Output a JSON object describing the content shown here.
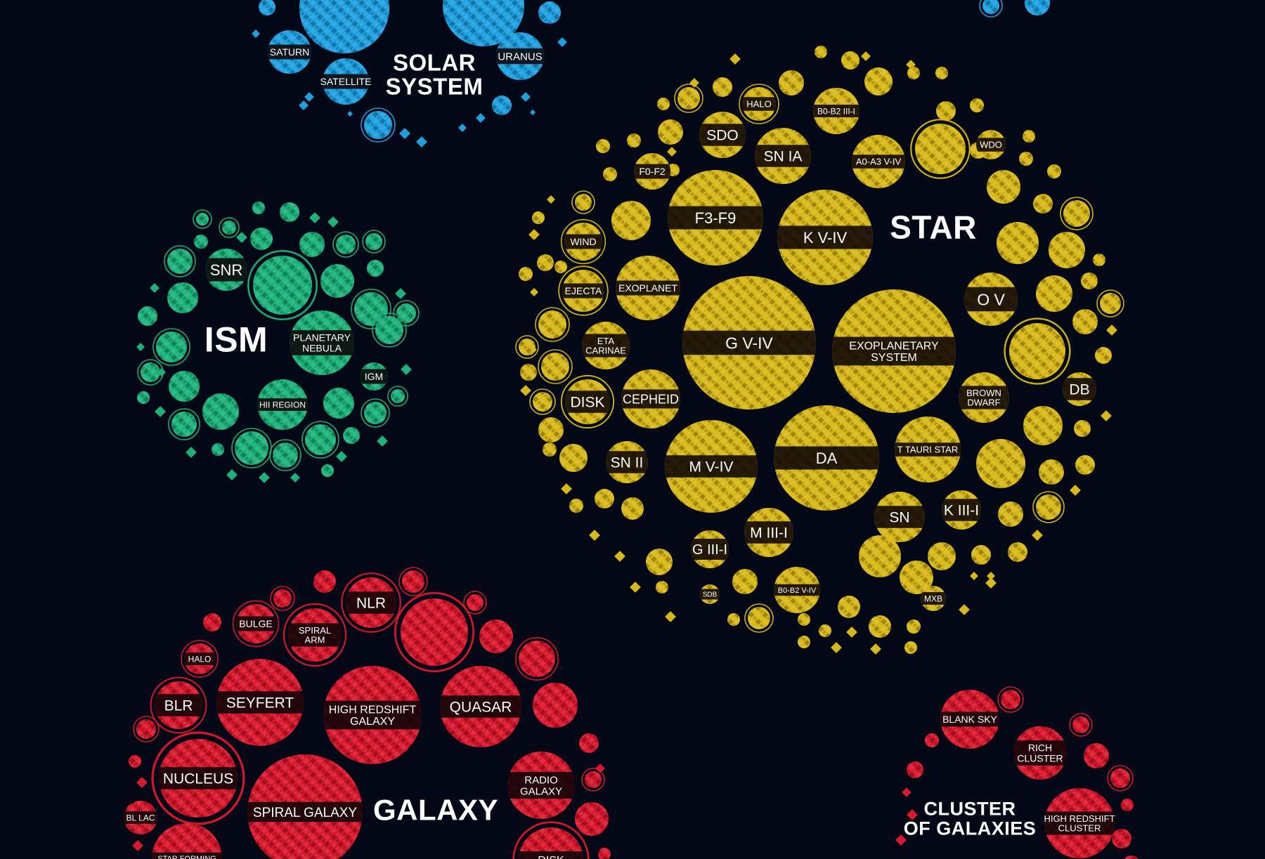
{
  "groups": [
    {
      "key": "solar",
      "title": "SOLAR\nSYSTEM",
      "color": "#1fa0e0",
      "labels": [
        "SATURN",
        "SATELLITE",
        "URANUS"
      ]
    },
    {
      "key": "star",
      "title": "STAR",
      "color": "#d8b818",
      "labels": [
        "HALO",
        "B0-B2 III-I",
        "SDO",
        "SN IA",
        "A0-A3 V-IV",
        "WDO",
        "F0-F2",
        "F3-F9",
        "K V-IV",
        "WIND",
        "EXOPLANET",
        "EJECTA",
        "O V",
        "G V-IV",
        "EXOPLANETARY\nSYSTEM",
        "ETA\nCARINAE",
        "DB",
        "BROWN\nDWARF",
        "DISK",
        "CEPHEID",
        "SN II",
        "M V-IV",
        "DA",
        "T TAURI STAR",
        "K III-I",
        "SN",
        "M III-I",
        "G III-I",
        "SDB",
        "B0-B2 V-IV",
        "MXB"
      ]
    },
    {
      "key": "ism",
      "title": "ISM",
      "color": "#1db27a",
      "labels": [
        "SNR",
        "PLANETARY\nNEBULA",
        "IGM",
        "HII REGION"
      ]
    },
    {
      "key": "galaxy",
      "title": "GALAXY",
      "color": "#d8182c",
      "labels": [
        "NLR",
        "BULGE",
        "SPIRAL\nARM",
        "HALO",
        "BLR",
        "SEYFERT",
        "HIGH REDSHIFT\nGALAXY",
        "QUASAR",
        "NUCLEUS",
        "RADIO\nGALAXY",
        "SPIRAL GALAXY",
        "BL LAC",
        "STAR FORMING",
        "DISK"
      ]
    },
    {
      "key": "cluster",
      "title": "CLUSTER\nOF GALAXIES",
      "color": "#d8182c",
      "labels": [
        "BLANK SKY",
        "RICH\nCLUSTER",
        "HIGH REDSHIFT\nCLUSTER"
      ]
    }
  ]
}
